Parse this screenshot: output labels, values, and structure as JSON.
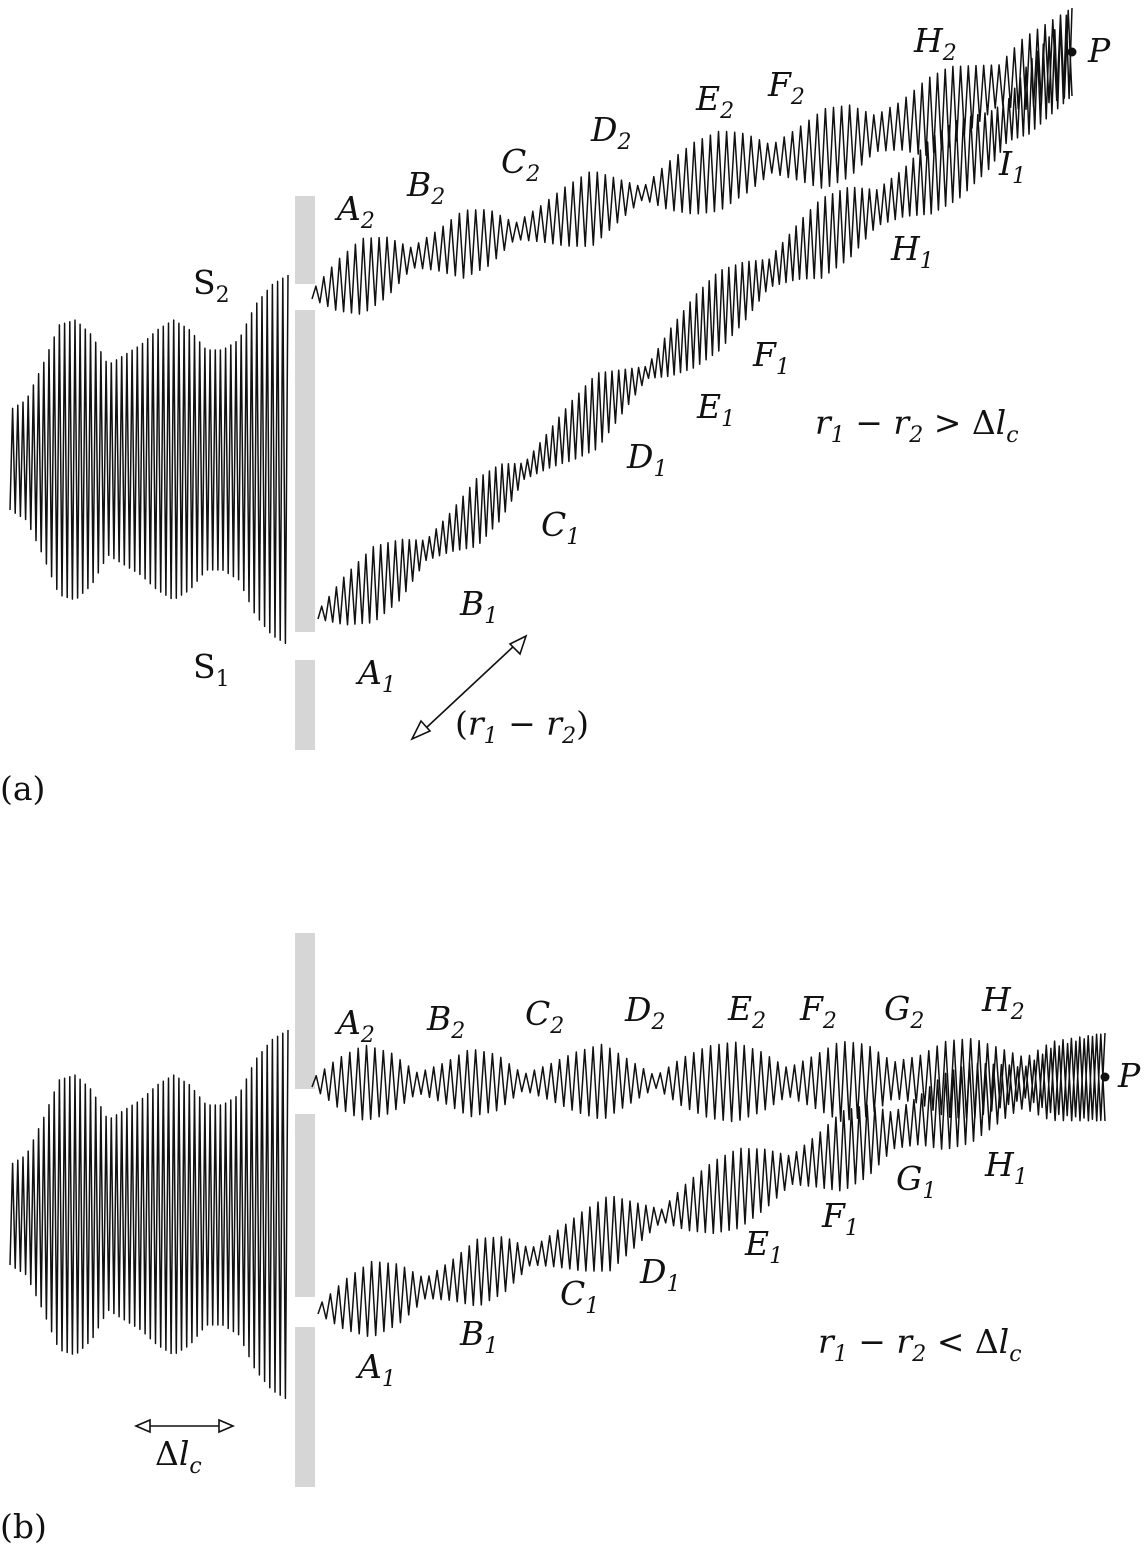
{
  "panel_a": {
    "tag": "(a)",
    "slit_top": {
      "main": "S",
      "sub": "2"
    },
    "slit_bottom": {
      "main": "S",
      "sub": "1"
    },
    "upper_labels": [
      {
        "main": "A",
        "sub": "2"
      },
      {
        "main": "B",
        "sub": "2"
      },
      {
        "main": "C",
        "sub": "2"
      },
      {
        "main": "D",
        "sub": "2"
      },
      {
        "main": "E",
        "sub": "2"
      },
      {
        "main": "F",
        "sub": "2"
      },
      {
        "main": "H",
        "sub": "2"
      }
    ],
    "lower_labels": [
      {
        "main": "A",
        "sub": "1"
      },
      {
        "main": "B",
        "sub": "1"
      },
      {
        "main": "C",
        "sub": "1"
      },
      {
        "main": "D",
        "sub": "1"
      },
      {
        "main": "E",
        "sub": "1"
      },
      {
        "main": "F",
        "sub": "1"
      },
      {
        "main": "H",
        "sub": "1"
      },
      {
        "main": "I",
        "sub": "1"
      }
    ],
    "point": "P",
    "condition": {
      "r1": "r",
      "s1": "1",
      "op": " − ",
      "r2": "r",
      "s2": "2",
      "rel": " > Δ",
      "l": "l",
      "lc": "c"
    },
    "arrow_label": {
      "open": "(",
      "r1": "r",
      "s1": "1",
      "op": " − ",
      "r2": "r",
      "s2": "2",
      "close": ")"
    }
  },
  "panel_b": {
    "tag": "(b)",
    "upper_labels": [
      {
        "main": "A",
        "sub": "2"
      },
      {
        "main": "B",
        "sub": "2"
      },
      {
        "main": "C",
        "sub": "2"
      },
      {
        "main": "D",
        "sub": "2"
      },
      {
        "main": "E",
        "sub": "2"
      },
      {
        "main": "F",
        "sub": "2"
      },
      {
        "main": "G",
        "sub": "2"
      },
      {
        "main": "H",
        "sub": "2"
      }
    ],
    "lower_labels": [
      {
        "main": "A",
        "sub": "1"
      },
      {
        "main": "B",
        "sub": "1"
      },
      {
        "main": "C",
        "sub": "1"
      },
      {
        "main": "D",
        "sub": "1"
      },
      {
        "main": "E",
        "sub": "1"
      },
      {
        "main": "F",
        "sub": "1"
      },
      {
        "main": "G",
        "sub": "1"
      },
      {
        "main": "H",
        "sub": "1"
      }
    ],
    "point": "P",
    "condition": {
      "r1": "r",
      "s1": "1",
      "op": " − ",
      "r2": "r",
      "s2": "2",
      "rel": " < Δ",
      "l": "l",
      "lc": "c"
    },
    "coherence_label": {
      "delta": "Δ",
      "l": "l",
      "lc": "c"
    }
  }
}
